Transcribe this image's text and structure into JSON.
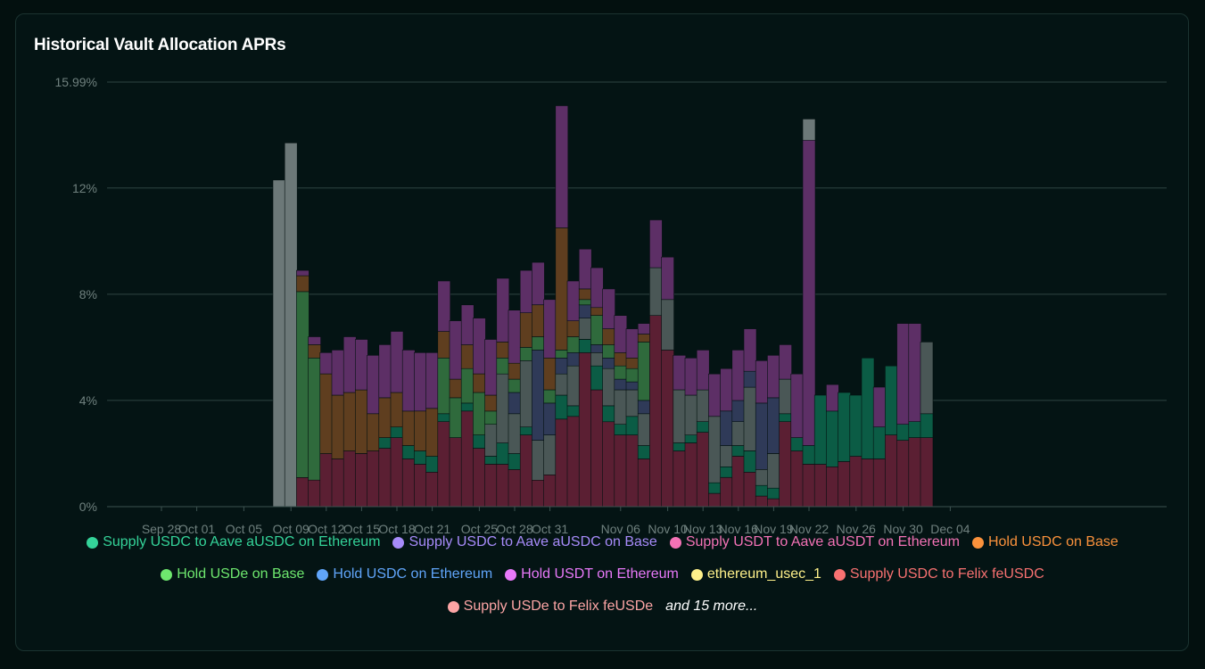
{
  "title": "Historical Vault Allocation APRs",
  "chart_data": {
    "type": "bar",
    "stacked": true,
    "title": "Historical Vault Allocation APRs",
    "y_ticks": [
      "0%",
      "4%",
      "8%",
      "12%",
      "15.99%"
    ],
    "ylim": [
      0,
      15.99
    ],
    "x_ticks": [
      {
        "label": "Sep 28",
        "index": 0
      },
      {
        "label": "Oct 01",
        "index": 3
      },
      {
        "label": "Oct 05",
        "index": 7
      },
      {
        "label": "Oct 09",
        "index": 11
      },
      {
        "label": "Oct 12",
        "index": 14
      },
      {
        "label": "Oct 15",
        "index": 17
      },
      {
        "label": "Oct 18",
        "index": 20
      },
      {
        "label": "Oct 21",
        "index": 23
      },
      {
        "label": "Oct 25",
        "index": 27
      },
      {
        "label": "Oct 28",
        "index": 30
      },
      {
        "label": "Oct 31",
        "index": 33
      },
      {
        "label": "Nov 06",
        "index": 39
      },
      {
        "label": "Nov 10",
        "index": 43
      },
      {
        "label": "Nov 13",
        "index": 46
      },
      {
        "label": "Nov 16",
        "index": 49
      },
      {
        "label": "Nov 19",
        "index": 52
      },
      {
        "label": "Nov 22",
        "index": 55
      },
      {
        "label": "Nov 26",
        "index": 59
      },
      {
        "label": "Nov 30",
        "index": 63
      },
      {
        "label": "Dec 04",
        "index": 67
      }
    ],
    "series_keys": [
      "maroon",
      "darkgreen",
      "gray",
      "navy",
      "green",
      "brown",
      "purple",
      "lgray"
    ],
    "series_colors": {
      "maroon": "#5b1f33",
      "darkgreen": "#0b5c45",
      "gray": "#4a5756",
      "navy": "#2f3a58",
      "green": "#2f6a3c",
      "brown": "#5f3e1f",
      "purple": "#5d2f66",
      "lgray": "#6c7878"
    },
    "bars": [
      {
        "date": "Sep 28",
        "v": [
          0,
          0,
          0,
          0,
          0,
          0,
          0,
          0
        ]
      },
      {
        "date": "Sep 29",
        "v": [
          0,
          0,
          0,
          0,
          0,
          0,
          0,
          0
        ]
      },
      {
        "date": "Sep 30",
        "v": [
          0,
          0,
          0,
          0,
          0,
          0,
          0,
          0
        ]
      },
      {
        "date": "Oct 01",
        "v": [
          0,
          0,
          0,
          0,
          0,
          0,
          0,
          0
        ]
      },
      {
        "date": "Oct 02",
        "v": [
          0,
          0,
          0,
          0,
          0,
          0,
          0,
          0
        ]
      },
      {
        "date": "Oct 03",
        "v": [
          0,
          0,
          0,
          0,
          0,
          0,
          0,
          0
        ]
      },
      {
        "date": "Oct 04",
        "v": [
          0,
          0,
          0,
          0,
          0,
          0,
          0,
          0
        ]
      },
      {
        "date": "Oct 05",
        "v": [
          0,
          0,
          0,
          0,
          0,
          0,
          0,
          0
        ]
      },
      {
        "date": "Oct 06",
        "v": [
          0,
          0,
          0,
          0,
          0,
          0,
          0,
          0
        ]
      },
      {
        "date": "Oct 07",
        "v": [
          0,
          0,
          0,
          0,
          0,
          0,
          0,
          0
        ]
      },
      {
        "date": "Oct 08",
        "v": [
          0,
          0,
          0,
          0,
          0,
          0,
          0,
          12.3
        ]
      },
      {
        "date": "Oct 09",
        "v": [
          0,
          0,
          0,
          0,
          0,
          0,
          0,
          13.7
        ]
      },
      {
        "date": "Oct 10",
        "v": [
          1.1,
          0,
          0,
          0,
          7,
          0.6,
          0.2,
          0
        ]
      },
      {
        "date": "Oct 11",
        "v": [
          1,
          0,
          0,
          0,
          4.6,
          0.5,
          0.3,
          0
        ]
      },
      {
        "date": "Oct 12",
        "v": [
          2,
          0,
          0,
          0,
          0,
          3,
          0.8,
          0
        ]
      },
      {
        "date": "Oct 13",
        "v": [
          1.8,
          0,
          0,
          0,
          0,
          2.4,
          1.7,
          0
        ]
      },
      {
        "date": "Oct 14",
        "v": [
          2.1,
          0,
          0,
          0,
          0,
          2.2,
          2.1,
          0
        ]
      },
      {
        "date": "Oct 15",
        "v": [
          2,
          0,
          0,
          0,
          0,
          2.4,
          1.9,
          0
        ]
      },
      {
        "date": "Oct 16",
        "v": [
          2.1,
          0,
          0,
          0,
          0,
          1.4,
          2.2,
          0
        ]
      },
      {
        "date": "Oct 17",
        "v": [
          2.2,
          0.4,
          0,
          0,
          0,
          1.5,
          2,
          0
        ]
      },
      {
        "date": "Oct 18",
        "v": [
          2.6,
          0.4,
          0,
          0,
          0,
          1.3,
          2.3,
          0
        ]
      },
      {
        "date": "Oct 19",
        "v": [
          1.8,
          0.5,
          0,
          0,
          0,
          1.3,
          2.3,
          0
        ]
      },
      {
        "date": "Oct 20",
        "v": [
          1.6,
          0.5,
          0,
          0,
          0,
          1.5,
          2.2,
          0
        ]
      },
      {
        "date": "Oct 21",
        "v": [
          1.3,
          0.6,
          0,
          0,
          0,
          1.8,
          2.1,
          0
        ]
      },
      {
        "date": "Oct 22",
        "v": [
          3.2,
          0.3,
          0,
          0,
          2.1,
          1,
          1.9,
          0
        ]
      },
      {
        "date": "Oct 23",
        "v": [
          2.6,
          0,
          0,
          0,
          1.5,
          0.7,
          2.2,
          0
        ]
      },
      {
        "date": "Oct 24",
        "v": [
          3.6,
          0.3,
          0,
          0,
          1.3,
          0.9,
          1.5,
          0
        ]
      },
      {
        "date": "Oct 25",
        "v": [
          2.2,
          0.5,
          0,
          0,
          1.6,
          0.7,
          2.1,
          0
        ]
      },
      {
        "date": "Oct 26",
        "v": [
          1.6,
          0.3,
          1.2,
          0,
          0.5,
          0.6,
          2.1,
          0
        ]
      },
      {
        "date": "Oct 27",
        "v": [
          1.6,
          0.8,
          2.6,
          0,
          0.6,
          0.6,
          2.4,
          0
        ]
      },
      {
        "date": "Oct 28",
        "v": [
          1.4,
          0.6,
          1.5,
          0.8,
          0.5,
          0.6,
          2,
          0
        ]
      },
      {
        "date": "Oct 29",
        "v": [
          2.7,
          0.3,
          2.5,
          0,
          0.5,
          1.3,
          1.6,
          0
        ]
      },
      {
        "date": "Oct 30",
        "v": [
          1,
          0,
          1.5,
          3.4,
          0.5,
          1.2,
          1.6,
          0
        ]
      },
      {
        "date": "Oct 31",
        "v": [
          1.2,
          0,
          1.5,
          1.2,
          0.5,
          1.2,
          2.2,
          0
        ]
      },
      {
        "date": "Nov 01",
        "v": [
          3.3,
          0.9,
          0.8,
          0.6,
          0.3,
          4.6,
          4.6,
          0
        ]
      },
      {
        "date": "Nov 02",
        "v": [
          3.4,
          0.4,
          1.5,
          0.5,
          0.6,
          0.6,
          1.5,
          0
        ]
      },
      {
        "date": "Nov 03",
        "v": [
          5.8,
          0.5,
          0.8,
          0.5,
          0.2,
          0.4,
          1.5,
          0
        ]
      },
      {
        "date": "Nov 04",
        "v": [
          4.4,
          0.9,
          0.5,
          0.3,
          1.1,
          0.3,
          1.5,
          0
        ]
      },
      {
        "date": "Nov 05",
        "v": [
          3.2,
          0.6,
          1.4,
          0.4,
          0.5,
          0.6,
          1.5,
          0
        ]
      },
      {
        "date": "Nov 06",
        "v": [
          2.7,
          0.4,
          1.3,
          0.4,
          0.5,
          0.5,
          1.4,
          0
        ]
      },
      {
        "date": "Nov 07",
        "v": [
          2.7,
          0.7,
          1,
          0.3,
          0.5,
          0.4,
          1.1,
          0
        ]
      },
      {
        "date": "Nov 08",
        "v": [
          1.8,
          0.5,
          1.2,
          0.5,
          2.2,
          0.3,
          0.4,
          0
        ]
      },
      {
        "date": "Nov 09",
        "v": [
          7.2,
          0,
          1.8,
          0,
          0,
          0,
          1.8,
          0
        ]
      },
      {
        "date": "Nov 10",
        "v": [
          5.9,
          0,
          1.9,
          0,
          0,
          0,
          1.6,
          0
        ]
      },
      {
        "date": "Nov 11",
        "v": [
          2.1,
          0.3,
          2,
          0,
          0,
          0,
          1.3,
          0
        ]
      },
      {
        "date": "Nov 12",
        "v": [
          2.4,
          0.3,
          1.5,
          0,
          0,
          0,
          1.4,
          0
        ]
      },
      {
        "date": "Nov 13",
        "v": [
          2.8,
          0.4,
          1.2,
          0,
          0,
          0,
          1.5,
          0
        ]
      },
      {
        "date": "Nov 14",
        "v": [
          0.5,
          0.4,
          2.5,
          0,
          0,
          0,
          1.6,
          0
        ]
      },
      {
        "date": "Nov 15",
        "v": [
          1.1,
          0.4,
          0.8,
          1.3,
          0,
          0,
          1.6,
          0
        ]
      },
      {
        "date": "Nov 16",
        "v": [
          1.9,
          0.4,
          0.9,
          0.8,
          0,
          0,
          1.9,
          0
        ]
      },
      {
        "date": "Nov 17",
        "v": [
          1.3,
          0.8,
          2.4,
          0.6,
          0,
          0,
          1.6,
          0
        ]
      },
      {
        "date": "Nov 18",
        "v": [
          0.4,
          0.4,
          0.6,
          2.5,
          0,
          0,
          1.6,
          0
        ]
      },
      {
        "date": "Nov 19",
        "v": [
          0.3,
          0.4,
          1.3,
          2.1,
          0,
          0,
          1.6,
          0
        ]
      },
      {
        "date": "Nov 20",
        "v": [
          3.2,
          0.3,
          1.3,
          0,
          0,
          0,
          1.3,
          0
        ]
      },
      {
        "date": "Nov 21",
        "v": [
          2.1,
          0.5,
          0,
          0,
          0,
          0,
          2.4,
          0
        ]
      },
      {
        "date": "Nov 22",
        "v": [
          1.6,
          0.7,
          0,
          0,
          0,
          0,
          11.5,
          0.8
        ]
      },
      {
        "date": "Nov 23",
        "v": [
          1.6,
          2.6,
          0,
          0,
          0,
          0,
          0,
          0
        ]
      },
      {
        "date": "Nov 24",
        "v": [
          1.5,
          2.1,
          0,
          0,
          0,
          0,
          1,
          0
        ]
      },
      {
        "date": "Nov 25",
        "v": [
          1.7,
          2.6,
          0,
          0,
          0,
          0,
          0,
          0
        ]
      },
      {
        "date": "Nov 26",
        "v": [
          1.9,
          2.3,
          0,
          0,
          0,
          0,
          0,
          0
        ]
      },
      {
        "date": "Nov 27",
        "v": [
          1.8,
          3.8,
          0,
          0,
          0,
          0,
          0,
          0
        ]
      },
      {
        "date": "Nov 28",
        "v": [
          1.8,
          1.2,
          0,
          0,
          0,
          0,
          1.5,
          0
        ]
      },
      {
        "date": "Nov 29",
        "v": [
          2.7,
          2.6,
          0,
          0,
          0,
          0,
          0,
          0
        ]
      },
      {
        "date": "Nov 30",
        "v": [
          2.5,
          0.6,
          0,
          0,
          0,
          0,
          3.8,
          0
        ]
      },
      {
        "date": "Dec 01",
        "v": [
          2.6,
          0.6,
          0,
          0,
          0,
          0,
          3.7,
          0
        ]
      },
      {
        "date": "Dec 02",
        "v": [
          2.6,
          0.9,
          2.7,
          0,
          0,
          0,
          0,
          0
        ]
      }
    ]
  },
  "legend": {
    "rows": [
      [
        {
          "label": "Supply USDC to Aave aUSDC on Ethereum",
          "color": "#34d399"
        },
        {
          "label": "Supply USDC to Aave aUSDC on Base",
          "color": "#a78bfa"
        },
        {
          "label": "Supply USDT to Aave aUSDT on Ethereum",
          "color": "#f472b6"
        },
        {
          "label": "Hold USDC on Base",
          "color": "#fb923c"
        }
      ],
      [
        {
          "label": "Hold USDe on Base",
          "color": "#6ee76e"
        },
        {
          "label": "Hold USDC on Ethereum",
          "color": "#60a5fa"
        },
        {
          "label": "Hold USDT on Ethereum",
          "color": "#e879f9"
        },
        {
          "label": "ethereum_usec_1",
          "color": "#fef08a"
        },
        {
          "label": "Supply USDC to Felix feUSDC",
          "color": "#f87171"
        }
      ],
      [
        {
          "label": "Supply USDe to Felix feUSDe",
          "color": "#fca5a5"
        }
      ]
    ],
    "more_label": "and 15 more..."
  }
}
